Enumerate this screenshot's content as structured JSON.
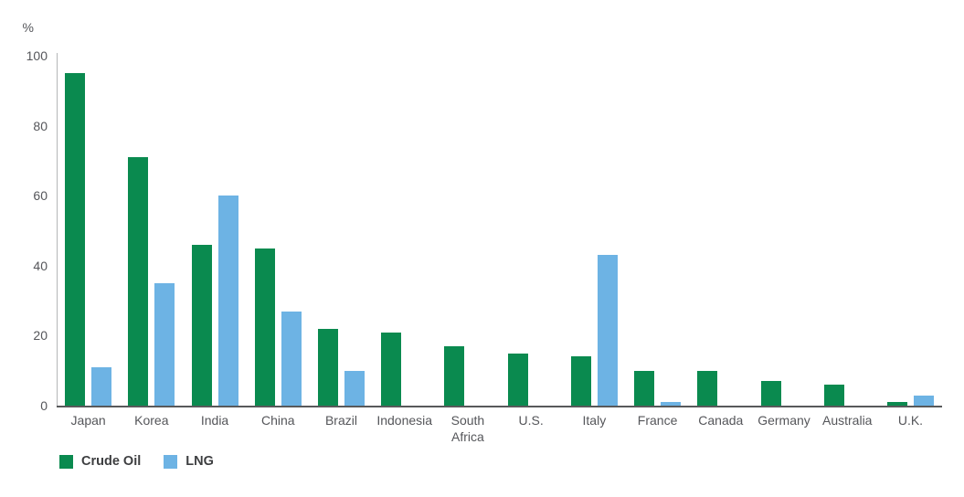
{
  "chart_data": {
    "type": "bar",
    "title": "",
    "unit_label": "%",
    "xlabel": "",
    "ylabel": "%",
    "ylim": [
      0,
      100
    ],
    "yticks": [
      0,
      20,
      40,
      60,
      80,
      100
    ],
    "grid": false,
    "legend_position": "bottom-left",
    "categories": [
      "Japan",
      "Korea",
      "India",
      "China",
      "Brazil",
      "Indonesia",
      "South Africa",
      "U.S.",
      "Italy",
      "France",
      "Canada",
      "Germany",
      "Australia",
      "U.K."
    ],
    "series": [
      {
        "name": "Crude Oil",
        "color": "#0a8a4f",
        "values": [
          95,
          71,
          46,
          45,
          22,
          21,
          17,
          15,
          14,
          10,
          10,
          7,
          6,
          1
        ]
      },
      {
        "name": "LNG",
        "color": "#6db3e4",
        "values": [
          11,
          35,
          60,
          27,
          10,
          0,
          0,
          0,
          43,
          1,
          0,
          0,
          0,
          3
        ]
      }
    ]
  },
  "colors": {
    "crude_oil": "#0a8a4f",
    "lng": "#6db3e4",
    "axis_line": "#58595b",
    "y_axis_line": "#b4b6b8",
    "tick_text": "#55565a",
    "legend_text": "#3d3e40"
  }
}
